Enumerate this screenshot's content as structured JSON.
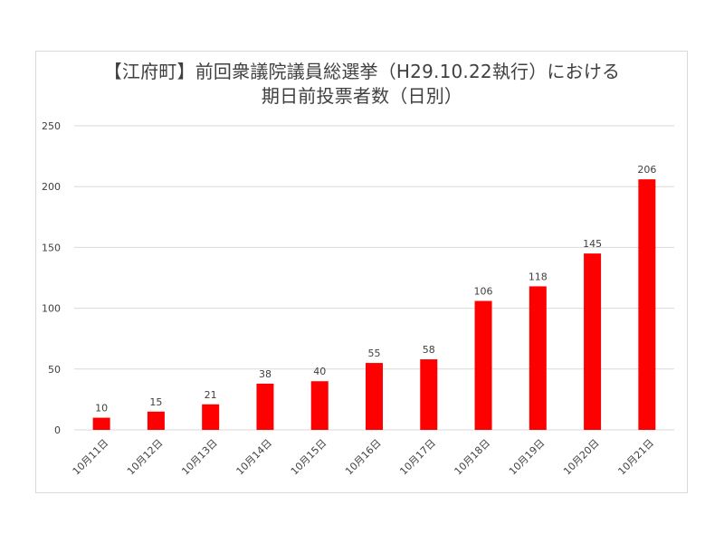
{
  "chart_data": {
    "type": "bar",
    "title_lines": [
      "【江府町】前回衆議院議員総選挙（H29.10.22執行）における",
      "期日前投票者数（日別）"
    ],
    "categories": [
      "10月11日",
      "10月12日",
      "10月13日",
      "10月14日",
      "10月15日",
      "10月16日",
      "10月17日",
      "10月18日",
      "10月19日",
      "10月20日",
      "10月21日"
    ],
    "values": [
      10,
      15,
      21,
      38,
      40,
      55,
      58,
      106,
      118,
      145,
      206
    ],
    "data_labels": [
      "10",
      "15",
      "21",
      "38",
      "40",
      "55",
      "58",
      "106",
      "118",
      "145",
      "206"
    ],
    "yticks": [
      0,
      50,
      100,
      150,
      200,
      250
    ],
    "ytick_labels": [
      "0",
      "50",
      "100",
      "150",
      "200",
      "250"
    ],
    "ylim": [
      0,
      250
    ],
    "xlabel": "",
    "ylabel": "",
    "grid": true,
    "legend": "none",
    "bar_color": "#ff0000",
    "grid_color": "#d9d9d9",
    "text_color": "#404040"
  }
}
